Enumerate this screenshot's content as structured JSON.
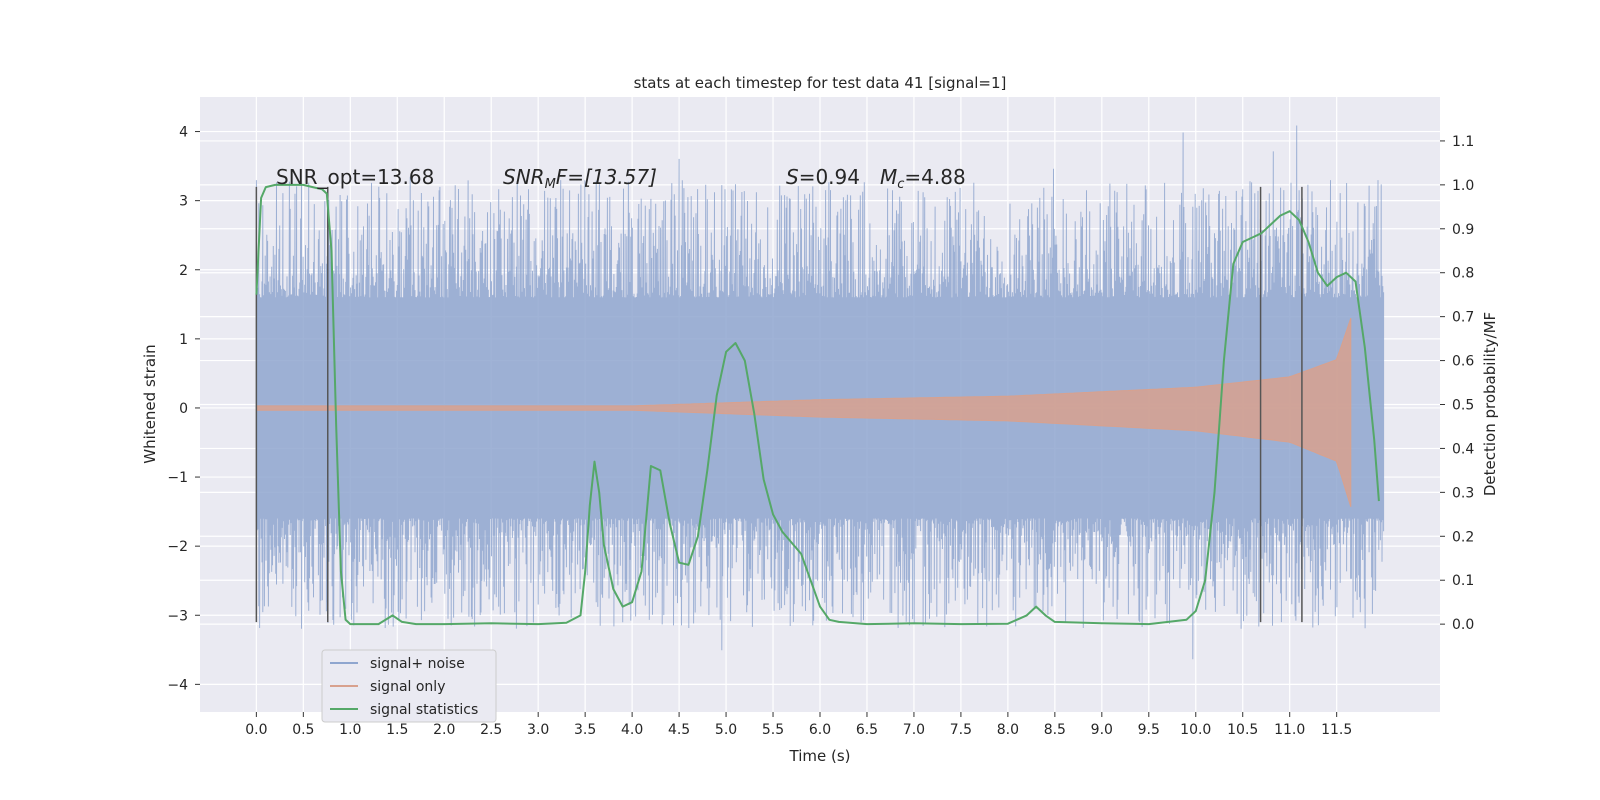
{
  "chart_data": {
    "type": "line",
    "title": "stats at each timestep for test data 41 [signal=1]",
    "xlabel": "Time (s)",
    "ylabel": "Whitened strain",
    "y2label": "Detection probability/MF",
    "xlim": [
      -0.6,
      12.6
    ],
    "ylim": [
      -4.4,
      4.5
    ],
    "y2lim": [
      -0.2,
      1.2
    ],
    "x_ticks": [
      "0.0",
      "0.5",
      "1.0",
      "1.5",
      "2.0",
      "2.5",
      "3.0",
      "3.5",
      "4.0",
      "4.5",
      "5.0",
      "5.5",
      "6.0",
      "6.5",
      "7.0",
      "7.5",
      "8.0",
      "8.5",
      "9.0",
      "9.5",
      "10.0",
      "10.5",
      "11.0",
      "11.5"
    ],
    "y_ticks": [
      "4",
      "3",
      "2",
      "1",
      "0",
      "−1",
      "−2",
      "−3",
      "−4"
    ],
    "y2_ticks": [
      "1.1",
      "1.0",
      "0.9",
      "0.8",
      "0.7",
      "0.6",
      "0.5",
      "0.4",
      "0.3",
      "0.2",
      "0.1",
      "0.0"
    ],
    "grid": true,
    "legend_placement": "lower-left",
    "annotations": {
      "snr_opt": "SNR_opt=13.68",
      "snr_mf_label": "SNR",
      "snr_mf_sub": "M",
      "snr_mf_rest": "F=[13.57]",
      "s_label": "S",
      "s_value": "=0.94",
      "mc_label": "M",
      "mc_sub": "c",
      "mc_value": "=4.88"
    },
    "vlines_x": [
      0.0,
      0.76,
      10.69,
      11.13
    ],
    "vline_y_range": [
      -3.1,
      3.2
    ],
    "colors": {
      "background": "#eaeaf2",
      "grid": "#ffffff",
      "noise": "#8fa6cf",
      "signal": "#d8a18e",
      "stat": "#55a868",
      "vline": "#555555"
    },
    "series": [
      {
        "name": "signal+ noise",
        "kind": "noise-band",
        "x_range": [
          0.0,
          12.0
        ],
        "envelope_core": [
          -1.6,
          1.6
        ],
        "typical_peak_range": [
          -3.2,
          3.3
        ],
        "max": 4.1,
        "min": -3.9
      },
      {
        "name": "signal only",
        "kind": "chirp",
        "x_range": [
          0.0,
          11.65
        ],
        "amplitude_points": [
          [
            0.0,
            0.03
          ],
          [
            4.0,
            0.03
          ],
          [
            6.0,
            0.12
          ],
          [
            8.0,
            0.17
          ],
          [
            10.0,
            0.3
          ],
          [
            11.0,
            0.45
          ],
          [
            11.5,
            0.7
          ],
          [
            11.65,
            1.3
          ]
        ]
      },
      {
        "name": "signal statistics",
        "kind": "line",
        "x": [
          0.0,
          0.05,
          0.1,
          0.2,
          0.3,
          0.4,
          0.5,
          0.6,
          0.7,
          0.75,
          0.8,
          0.85,
          0.9,
          0.95,
          1.0,
          1.1,
          1.3,
          1.45,
          1.55,
          1.7,
          2.0,
          2.5,
          3.0,
          3.3,
          3.45,
          3.5,
          3.55,
          3.6,
          3.65,
          3.7,
          3.8,
          3.9,
          4.0,
          4.1,
          4.2,
          4.3,
          4.4,
          4.5,
          4.6,
          4.7,
          4.8,
          4.9,
          5.0,
          5.1,
          5.2,
          5.3,
          5.4,
          5.5,
          5.6,
          5.8,
          6.0,
          6.1,
          6.2,
          6.5,
          7.0,
          7.5,
          8.0,
          8.2,
          8.3,
          8.4,
          8.5,
          9.0,
          9.5,
          9.9,
          10.0,
          10.1,
          10.2,
          10.3,
          10.4,
          10.5,
          10.6,
          10.7,
          10.8,
          10.9,
          11.0,
          11.1,
          11.2,
          11.3,
          11.4,
          11.5,
          11.6,
          11.7,
          11.8,
          11.9,
          11.95
        ],
        "y": [
          0.75,
          0.97,
          0.995,
          1.0,
          1.0,
          1.0,
          1.0,
          0.995,
          0.99,
          0.98,
          0.85,
          0.45,
          0.12,
          0.01,
          0.0,
          0.0,
          0.0,
          0.02,
          0.005,
          0.0,
          0.0,
          0.002,
          0.0,
          0.003,
          0.02,
          0.12,
          0.27,
          0.37,
          0.3,
          0.18,
          0.08,
          0.04,
          0.05,
          0.12,
          0.36,
          0.35,
          0.23,
          0.14,
          0.135,
          0.2,
          0.35,
          0.52,
          0.62,
          0.64,
          0.6,
          0.48,
          0.33,
          0.25,
          0.21,
          0.16,
          0.04,
          0.01,
          0.005,
          0.0,
          0.002,
          0.0,
          0.001,
          0.02,
          0.04,
          0.02,
          0.005,
          0.002,
          0.0,
          0.01,
          0.03,
          0.1,
          0.3,
          0.6,
          0.82,
          0.87,
          0.88,
          0.89,
          0.91,
          0.93,
          0.94,
          0.92,
          0.87,
          0.8,
          0.77,
          0.79,
          0.8,
          0.78,
          0.63,
          0.42,
          0.28
        ]
      }
    ]
  }
}
